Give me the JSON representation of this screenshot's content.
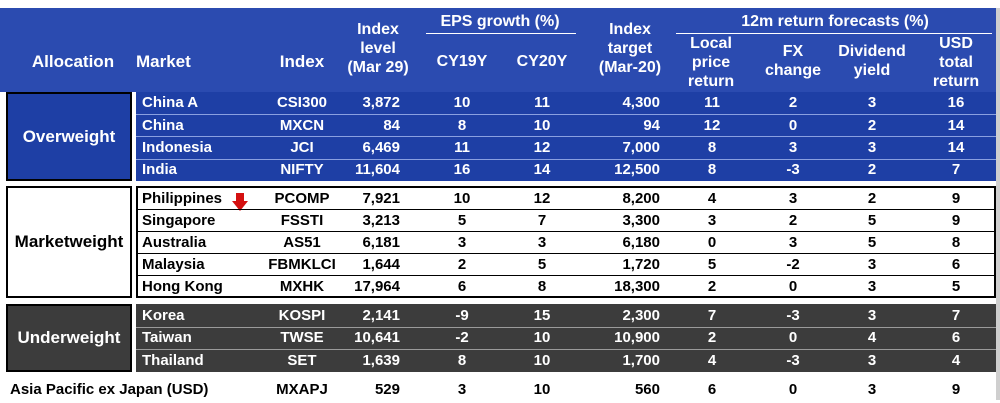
{
  "header": {
    "allocation": "Allocation",
    "market": "Market",
    "index": "Index",
    "index_level": [
      "Index",
      "level",
      "(Mar 29)"
    ],
    "eps_group": "EPS growth (%)",
    "cy19": "CY19Y",
    "cy20": "CY20Y",
    "index_target": [
      "Index",
      "target",
      "(Mar-20)"
    ],
    "forecast_group": "12m return forecasts (%)",
    "local": [
      "Local",
      "price",
      "return"
    ],
    "fx": [
      "FX",
      "change"
    ],
    "dividend": [
      "Dividend",
      "yield"
    ],
    "usd": [
      "USD",
      "total",
      "return"
    ]
  },
  "groups": [
    {
      "allocation": "Overweight",
      "rows": [
        {
          "market": "China A",
          "index": "CSI300",
          "level": "3,872",
          "cy19": "10",
          "cy20": "11",
          "target": "4,300",
          "local": "11",
          "fx": "2",
          "dividend": "3",
          "usd": "16"
        },
        {
          "market": "China",
          "index": "MXCN",
          "level": "84",
          "cy19": "8",
          "cy20": "10",
          "target": "94",
          "local": "12",
          "fx": "0",
          "dividend": "2",
          "usd": "14"
        },
        {
          "market": "Indonesia",
          "index": "JCI",
          "level": "6,469",
          "cy19": "11",
          "cy20": "12",
          "target": "7,000",
          "local": "8",
          "fx": "3",
          "dividend": "3",
          "usd": "14"
        },
        {
          "market": "India",
          "index": "NIFTY",
          "level": "11,604",
          "cy19": "16",
          "cy20": "14",
          "target": "12,500",
          "local": "8",
          "fx": "-3",
          "dividend": "2",
          "usd": "7"
        }
      ]
    },
    {
      "allocation": "Marketweight",
      "rows": [
        {
          "market": "Philippines",
          "index": "PCOMP",
          "level": "7,921",
          "cy19": "10",
          "cy20": "12",
          "target": "8,200",
          "local": "4",
          "fx": "3",
          "dividend": "2",
          "usd": "9"
        },
        {
          "market": "Singapore",
          "index": "FSSTI",
          "level": "3,213",
          "cy19": "5",
          "cy20": "7",
          "target": "3,300",
          "local": "3",
          "fx": "2",
          "dividend": "5",
          "usd": "9"
        },
        {
          "market": "Australia",
          "index": "AS51",
          "level": "6,181",
          "cy19": "3",
          "cy20": "3",
          "target": "6,180",
          "local": "0",
          "fx": "3",
          "dividend": "5",
          "usd": "8"
        },
        {
          "market": "Malaysia",
          "index": "FBMKLCI",
          "level": "1,644",
          "cy19": "2",
          "cy20": "5",
          "target": "1,720",
          "local": "5",
          "fx": "-2",
          "dividend": "3",
          "usd": "6"
        },
        {
          "market": "Hong Kong",
          "index": "MXHK",
          "level": "17,964",
          "cy19": "6",
          "cy20": "8",
          "target": "18,300",
          "local": "2",
          "fx": "0",
          "dividend": "3",
          "usd": "5"
        }
      ]
    },
    {
      "allocation": "Underweight",
      "rows": [
        {
          "market": "Korea",
          "index": "KOSPI",
          "level": "2,141",
          "cy19": "-9",
          "cy20": "15",
          "target": "2,300",
          "local": "7",
          "fx": "-3",
          "dividend": "3",
          "usd": "7"
        },
        {
          "market": "Taiwan",
          "index": "TWSE",
          "level": "10,641",
          "cy19": "-2",
          "cy20": "10",
          "target": "10,900",
          "local": "2",
          "fx": "0",
          "dividend": "4",
          "usd": "6"
        },
        {
          "market": "Thailand",
          "index": "SET",
          "level": "1,639",
          "cy19": "8",
          "cy20": "10",
          "target": "1,700",
          "local": "4",
          "fx": "-3",
          "dividend": "3",
          "usd": "4"
        }
      ]
    }
  ],
  "total": {
    "label": "Asia Pacific ex Japan (USD)",
    "index": "MXAPJ",
    "level": "529",
    "cy19": "3",
    "cy20": "10",
    "target": "560",
    "local": "6",
    "fx": "0",
    "dividend": "3",
    "usd": "9"
  },
  "downgrade_marker": {
    "market": "Philippines",
    "icon": "red-down-arrow-icon",
    "color": "#d41010"
  },
  "colors": {
    "header": "#2B4BB0",
    "overweight": "#1E3FA5",
    "underweight": "#3C3C3C"
  }
}
